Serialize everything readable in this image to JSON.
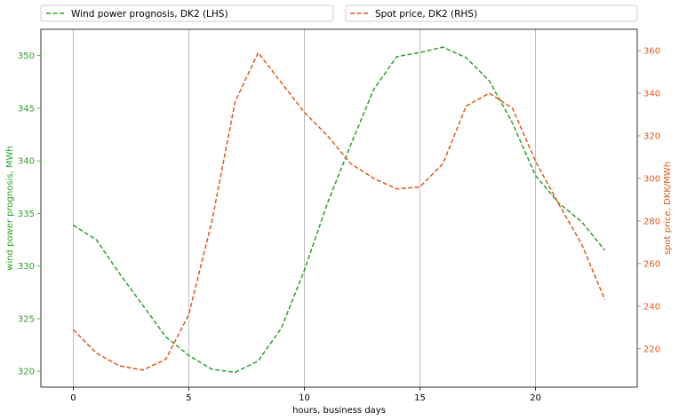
{
  "chart_data": {
    "type": "line",
    "title": "",
    "xlabel": "hours, business days",
    "ylabel_left": "wind power prognosis, MWh",
    "ylabel_right": "spot price, DKK/MWh",
    "xlim": [
      -1.4,
      24.4
    ],
    "ylim_left": [
      318.5,
      352.5
    ],
    "ylim_right": [
      202,
      370
    ],
    "x_ticks": [
      0,
      5,
      10,
      15,
      20
    ],
    "y_left_ticks": [
      320,
      325,
      330,
      335,
      340,
      345,
      350
    ],
    "y_right_ticks": [
      220,
      240,
      260,
      280,
      300,
      320,
      340,
      360
    ],
    "grid": "vertical",
    "legend_placement": "top, above plot",
    "x": [
      0,
      1,
      2,
      3,
      4,
      5,
      6,
      7,
      8,
      9,
      10,
      11,
      12,
      13,
      14,
      15,
      16,
      17,
      18,
      19,
      20,
      21,
      22,
      23
    ],
    "series": [
      {
        "name": "Wind power prognosis, DK2 (LHS)",
        "axis": "left",
        "color": "#2ca02c",
        "style": "dashed",
        "values": [
          333.9,
          332.5,
          329.3,
          326.3,
          323.3,
          321.5,
          320.2,
          319.9,
          321.0,
          324.1,
          329.6,
          336.0,
          341.5,
          346.8,
          349.9,
          350.3,
          350.8,
          349.8,
          347.6,
          343.6,
          338.6,
          336.0,
          334.2,
          331.5
        ]
      },
      {
        "name": "Spot price, DK2 (RHS)",
        "axis": "right",
        "color": "#e0591a",
        "style": "dashed",
        "values": [
          229,
          218,
          212,
          210,
          215,
          236,
          280,
          336,
          359,
          345,
          331,
          320,
          307,
          300,
          295,
          296,
          307,
          334,
          340,
          333,
          308,
          288,
          269,
          243
        ]
      }
    ]
  }
}
